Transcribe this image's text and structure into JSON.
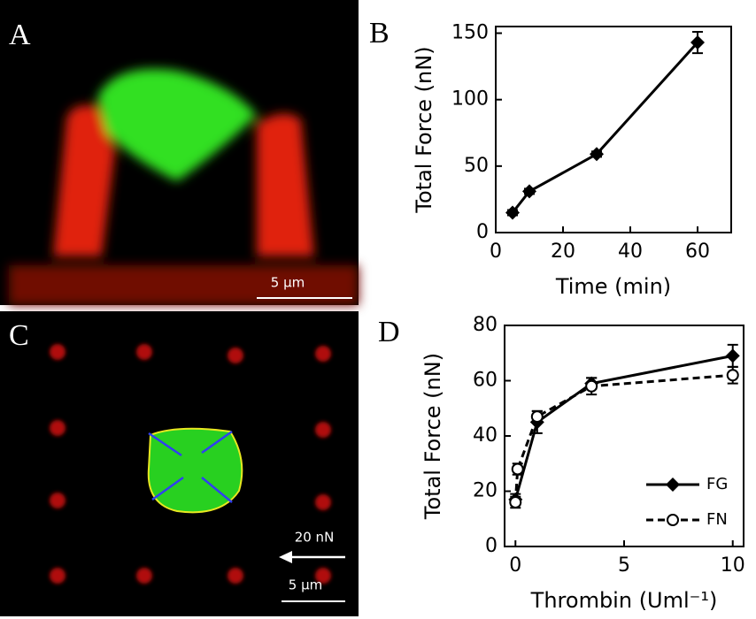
{
  "images": [
    {
      "label": "A",
      "scale_bar": "5 μm"
    },
    {
      "label": "C",
      "arrow_label": "20 nN",
      "scale_bar": "5 μm"
    }
  ],
  "chart_data": [
    {
      "label": "B",
      "type": "line",
      "xlabel": "Time (min)",
      "ylabel": "Total Force (nN)",
      "x": [
        5,
        10,
        30,
        60
      ],
      "values": [
        15,
        31,
        59,
        143
      ],
      "errors": [
        2,
        2,
        2,
        8
      ],
      "color": "#000000",
      "marker": "diamond",
      "line_style": "solid",
      "xlim": [
        0,
        70
      ],
      "ylim": [
        0,
        155
      ],
      "xticks": [
        0,
        20,
        40,
        60
      ],
      "yticks": [
        0,
        50,
        100,
        150
      ]
    },
    {
      "label": "D",
      "type": "line",
      "xlabel": "Thrombin (Uml⁻¹)",
      "ylabel": "Total Force (nN)",
      "series": [
        {
          "name": "FG",
          "color": "#000000",
          "marker": "diamond",
          "line_style": "solid",
          "x": [
            0,
            1,
            3.5,
            10
          ],
          "values": [
            17,
            45,
            59,
            69
          ],
          "errors": [
            2,
            4,
            2,
            4
          ]
        },
        {
          "name": "FN",
          "color": "#000000",
          "marker": "circle",
          "line_style": "dashed",
          "x": [
            0,
            0.1,
            1,
            3.5,
            10
          ],
          "values": [
            16,
            28,
            47,
            58,
            62
          ],
          "errors": [
            2,
            2,
            2,
            3,
            3
          ]
        }
      ],
      "legend": "lower right",
      "xlim": [
        -0.5,
        10.5
      ],
      "ylim": [
        0,
        80
      ],
      "xticks": [
        0,
        5,
        10
      ],
      "yticks": [
        0,
        20,
        40,
        60,
        80
      ]
    }
  ]
}
